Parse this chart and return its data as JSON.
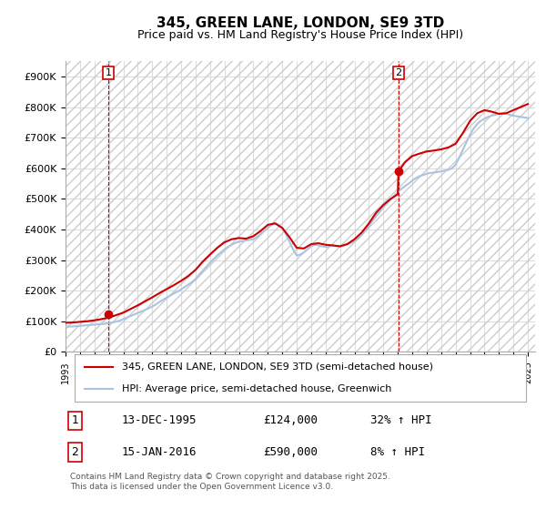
{
  "title": "345, GREEN LANE, LONDON, SE9 3TD",
  "subtitle": "Price paid vs. HM Land Registry's House Price Index (HPI)",
  "ylim": [
    0,
    950000
  ],
  "yticks": [
    0,
    100000,
    200000,
    300000,
    400000,
    500000,
    600000,
    700000,
    800000,
    900000
  ],
  "ytick_labels": [
    "£0",
    "£100K",
    "£200K",
    "£300K",
    "£400K",
    "£500K",
    "£600K",
    "£700K",
    "£800K",
    "£900K"
  ],
  "xlim_start": 1993.0,
  "xlim_end": 2025.5,
  "xtick_years": [
    1993,
    1994,
    1995,
    1996,
    1997,
    1998,
    1999,
    2000,
    2001,
    2002,
    2003,
    2004,
    2005,
    2006,
    2007,
    2008,
    2009,
    2010,
    2011,
    2012,
    2013,
    2014,
    2015,
    2016,
    2017,
    2018,
    2019,
    2020,
    2021,
    2022,
    2023,
    2024,
    2025
  ],
  "hpi_color": "#aac4e0",
  "price_color": "#cc0000",
  "dashed_line_color": "#cc0000",
  "marker1_x": 1995.95,
  "marker1_y": 124000,
  "marker2_x": 2016.04,
  "marker2_y": 590000,
  "annotation1_label": "1",
  "annotation2_label": "2",
  "legend_line1": "345, GREEN LANE, LONDON, SE9 3TD (semi-detached house)",
  "legend_line2": "HPI: Average price, semi-detached house, Greenwich",
  "table_row1": [
    "1",
    "13-DEC-1995",
    "£124,000",
    "32% ↑ HPI"
  ],
  "table_row2": [
    "2",
    "15-JAN-2016",
    "£590,000",
    "8% ↑ HPI"
  ],
  "footnote": "Contains HM Land Registry data © Crown copyright and database right 2025.\nThis data is licensed under the Open Government Licence v3.0.",
  "background_color": "#ffffff",
  "grid_color": "#dddddd",
  "hpi_data_x": [
    1993.0,
    1993.25,
    1993.5,
    1993.75,
    1994.0,
    1994.25,
    1994.5,
    1994.75,
    1995.0,
    1995.25,
    1995.5,
    1995.75,
    1996.0,
    1996.25,
    1996.5,
    1996.75,
    1997.0,
    1997.25,
    1997.5,
    1997.75,
    1998.0,
    1998.25,
    1998.5,
    1998.75,
    1999.0,
    1999.25,
    1999.5,
    1999.75,
    2000.0,
    2000.25,
    2000.5,
    2000.75,
    2001.0,
    2001.25,
    2001.5,
    2001.75,
    2002.0,
    2002.25,
    2002.5,
    2002.75,
    2003.0,
    2003.25,
    2003.5,
    2003.75,
    2004.0,
    2004.25,
    2004.5,
    2004.75,
    2005.0,
    2005.25,
    2005.5,
    2005.75,
    2006.0,
    2006.25,
    2006.5,
    2006.75,
    2007.0,
    2007.25,
    2007.5,
    2007.75,
    2008.0,
    2008.25,
    2008.5,
    2008.75,
    2009.0,
    2009.25,
    2009.5,
    2009.75,
    2010.0,
    2010.25,
    2010.5,
    2010.75,
    2011.0,
    2011.25,
    2011.5,
    2011.75,
    2012.0,
    2012.25,
    2012.5,
    2012.75,
    2013.0,
    2013.25,
    2013.5,
    2013.75,
    2014.0,
    2014.25,
    2014.5,
    2014.75,
    2015.0,
    2015.25,
    2015.5,
    2015.75,
    2016.0,
    2016.25,
    2016.5,
    2016.75,
    2017.0,
    2017.25,
    2017.5,
    2017.75,
    2018.0,
    2018.25,
    2018.5,
    2018.75,
    2019.0,
    2019.25,
    2019.5,
    2019.75,
    2020.0,
    2020.25,
    2020.5,
    2020.75,
    2021.0,
    2021.25,
    2021.5,
    2021.75,
    2022.0,
    2022.25,
    2022.5,
    2022.75,
    2023.0,
    2023.25,
    2023.5,
    2023.75,
    2024.0,
    2024.25,
    2024.5,
    2024.75,
    2025.0
  ],
  "hpi_data_y": [
    82000,
    82500,
    83000,
    84000,
    85000,
    86000,
    87000,
    88000,
    89000,
    90000,
    91000,
    92000,
    94000,
    96000,
    99000,
    102000,
    107000,
    112000,
    117000,
    122000,
    127000,
    132000,
    137000,
    142000,
    148000,
    155000,
    163000,
    170000,
    177000,
    184000,
    191000,
    197000,
    204000,
    212000,
    220000,
    228000,
    238000,
    252000,
    265000,
    278000,
    291000,
    303000,
    315000,
    325000,
    335000,
    343000,
    350000,
    356000,
    360000,
    362000,
    364000,
    366000,
    368000,
    375000,
    385000,
    395000,
    405000,
    415000,
    420000,
    415000,
    405000,
    385000,
    360000,
    335000,
    315000,
    318000,
    325000,
    335000,
    345000,
    350000,
    348000,
    345000,
    343000,
    345000,
    347000,
    346000,
    345000,
    348000,
    352000,
    356000,
    362000,
    370000,
    382000,
    396000,
    412000,
    428000,
    444000,
    458000,
    472000,
    485000,
    498000,
    510000,
    522000,
    533000,
    542000,
    550000,
    560000,
    568000,
    574000,
    578000,
    582000,
    585000,
    586000,
    588000,
    590000,
    592000,
    595000,
    600000,
    612000,
    635000,
    660000,
    685000,
    710000,
    730000,
    745000,
    755000,
    762000,
    768000,
    772000,
    775000,
    778000,
    780000,
    778000,
    775000,
    772000,
    770000,
    768000,
    766000,
    764000
  ],
  "price_data_x": [
    1993.0,
    1993.5,
    1994.0,
    1994.5,
    1995.0,
    1995.5,
    1996.0,
    1996.5,
    1997.0,
    1997.5,
    1998.0,
    1998.5,
    1999.0,
    1999.5,
    2000.0,
    2000.5,
    2001.0,
    2001.5,
    2002.0,
    2002.5,
    2003.0,
    2003.5,
    2004.0,
    2004.5,
    2005.0,
    2005.5,
    2006.0,
    2006.5,
    2007.0,
    2007.5,
    2008.0,
    2008.5,
    2009.0,
    2009.5,
    2010.0,
    2010.5,
    2011.0,
    2011.5,
    2012.0,
    2012.5,
    2013.0,
    2013.5,
    2014.0,
    2014.5,
    2015.0,
    2015.5,
    2016.0,
    2016.04,
    2016.5,
    2017.0,
    2017.5,
    2018.0,
    2018.5,
    2019.0,
    2019.5,
    2020.0,
    2020.5,
    2021.0,
    2021.5,
    2022.0,
    2022.5,
    2023.0,
    2023.5,
    2024.0,
    2024.5,
    2025.0
  ],
  "price_data_y": [
    95000,
    96000,
    98000,
    100000,
    103000,
    107000,
    112000,
    120000,
    128000,
    140000,
    152000,
    165000,
    178000,
    192000,
    205000,
    218000,
    232000,
    248000,
    268000,
    295000,
    318000,
    340000,
    358000,
    368000,
    372000,
    370000,
    378000,
    395000,
    415000,
    420000,
    405000,
    375000,
    340000,
    338000,
    352000,
    355000,
    350000,
    348000,
    345000,
    352000,
    368000,
    390000,
    420000,
    455000,
    480000,
    500000,
    515000,
    590000,
    620000,
    640000,
    648000,
    655000,
    658000,
    662000,
    668000,
    680000,
    715000,
    755000,
    780000,
    790000,
    785000,
    778000,
    780000,
    790000,
    800000,
    810000
  ]
}
